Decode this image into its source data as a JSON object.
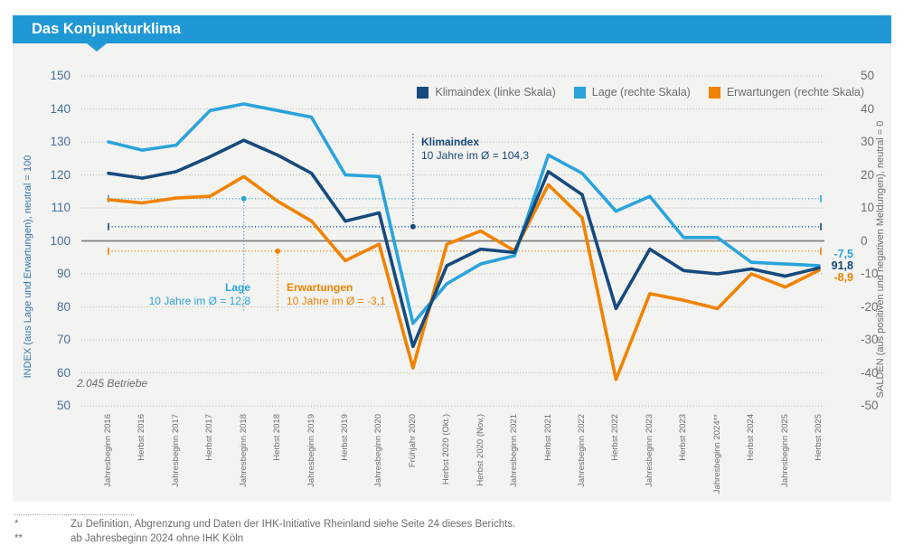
{
  "header": {
    "title": "Das Konjunkturklima"
  },
  "colors": {
    "header_bar": "#2098d5",
    "panel_bg": "#f3f3f1",
    "klimaindex": "#164a7d",
    "lage": "#2aa4db",
    "erwartungen": "#f08300",
    "grid_dotted": "#b3b3b1",
    "neutral_line": "#7f7f7d",
    "text_gray": "#6d6d6c",
    "axis_blue": "#2e74ae"
  },
  "annotations": {
    "klimaindex": {
      "title": "Klimaindex",
      "text": "10 Jahre im Ø = 104,3",
      "avg_value": 104.3
    },
    "lage": {
      "title": "Lage",
      "text": "10 Jahre im Ø = 12,8",
      "avg_value": 12.8
    },
    "erwartungen": {
      "title": "Erwartungen",
      "text": "10 Jahre im Ø = -3,1",
      "avg_value": -3.1
    },
    "sample_note": "2.045 Betriebe"
  },
  "end_labels": {
    "lage": "-7,5",
    "klimaindex": "91,8",
    "erwartungen": "-8,9"
  },
  "footnotes": [
    {
      "marker": "*",
      "text": "Zu Definition, Abgrenzung und Daten der IHK-Initiative Rheinland siehe Seite 24 dieses Berichts."
    },
    {
      "marker": "**",
      "text": "ab Jahresbeginn 2024 ohne IHK Köln"
    }
  ],
  "chart_data": {
    "type": "line",
    "title": "Das Konjunkturklima",
    "grid": true,
    "legend_position": "top-right",
    "categories": [
      "Jahresbeginn 2016",
      "Herbst 2016",
      "Jahresbeginn 2017",
      "Herbst 2017",
      "Jahresbeginn 2018",
      "Herbst 2018",
      "Jahresbeginn 2019",
      "Herbst 2019",
      "Jahresbeginn 2020",
      "Frühjahr 2020",
      "Herbst 2020 (Okt.)",
      "Herbst 2020 (Nov.)",
      "Jahresbeginn 2021",
      "Herbst 2021",
      "Jahresbeginn 2022",
      "Herbst 2022",
      "Jahresbeginn 2023",
      "Herbst 2023",
      "Jahresbeginn 2024**",
      "Herbst 2024",
      "Jahresbeginn 2025",
      "Herbst 2025"
    ],
    "left_axis": {
      "label": "INDEX (aus Lage und Erwartungen), neutral = 100",
      "min": 50,
      "max": 150,
      "step": 10,
      "neutral": 100,
      "ticks": [
        150,
        140,
        130,
        120,
        110,
        100,
        90,
        80,
        70,
        60,
        50
      ]
    },
    "right_axis": {
      "label": "SALDEN (aus positiven und negativen Meldungen), neutral = 0",
      "min": -50,
      "max": 50,
      "step": 10,
      "neutral": 0,
      "ticks": [
        50,
        40,
        30,
        20,
        10,
        0,
        -10,
        -20,
        -30,
        -40,
        -50
      ]
    },
    "series": [
      {
        "name": "Klimaindex (linke Skala)",
        "key": "klimaindex",
        "axis": "left",
        "color": "#164a7d",
        "avg_10y": 104.3,
        "end_value": 91.8,
        "values": [
          120.5,
          119,
          121,
          125.5,
          130.5,
          126,
          120.5,
          106,
          108.5,
          68,
          92.5,
          97.5,
          96.5,
          121,
          114,
          79.5,
          97.5,
          91,
          90,
          91.5,
          89.3,
          91.8
        ]
      },
      {
        "name": "Lage (rechte Skala)",
        "key": "lage",
        "axis": "right",
        "color": "#2aa4db",
        "avg_10y": 12.8,
        "end_value": -7.5,
        "values": [
          30,
          27.5,
          29,
          39.5,
          41.5,
          39.5,
          37.5,
          20,
          19.5,
          -25,
          -13,
          -7,
          -4.5,
          26,
          20.5,
          9,
          13.5,
          1,
          1,
          -6.5,
          -7,
          -7.5
        ]
      },
      {
        "name": "Erwartungen (rechte Skala)",
        "key": "erwartungen",
        "axis": "right",
        "color": "#f08300",
        "avg_10y": -3.1,
        "end_value": -8.9,
        "values": [
          12.5,
          11.5,
          13,
          13.5,
          19.5,
          12,
          6,
          -6,
          -1,
          -38.5,
          -1,
          3,
          -3,
          17,
          7,
          -42,
          -16,
          -18,
          -20.5,
          -10,
          -14,
          -8.9
        ]
      }
    ]
  }
}
